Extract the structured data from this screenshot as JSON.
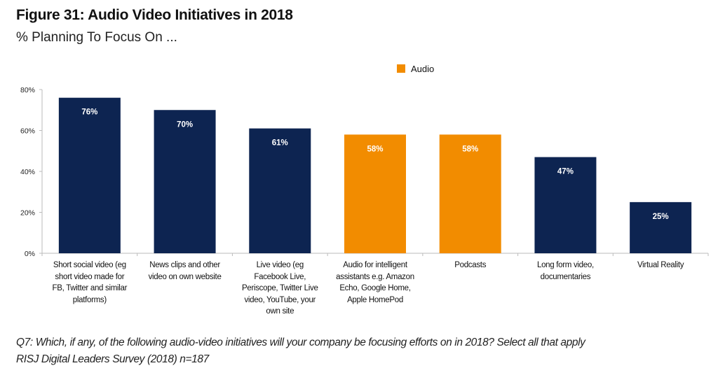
{
  "chart_data": {
    "type": "bar",
    "title": "Figure 31: Audio Video Initiatives in 2018",
    "subtitle": "% Planning To Focus On ...",
    "categories": [
      [
        "Short social video (eg",
        "short video made for",
        "FB, Twitter and similar",
        "platforms)"
      ],
      [
        "News clips and other",
        "video on own website"
      ],
      [
        "Live video (eg",
        "Facebook Live,",
        "Periscope, Twitter Live",
        "video, YouTube, your",
        "own site"
      ],
      [
        "Audio for intelligent",
        "assistants e.g. Amazon",
        "Echo, Google Home,",
        "Apple HomePod"
      ],
      [
        "Podcasts"
      ],
      [
        "Long form video,",
        "documentaries"
      ],
      [
        "Virtual Reality"
      ]
    ],
    "values": [
      76,
      70,
      61,
      58,
      58,
      47,
      25
    ],
    "data_labels": [
      "76%",
      "70%",
      "61%",
      "58%",
      "58%",
      "47%",
      "25%"
    ],
    "is_audio": [
      false,
      false,
      false,
      true,
      true,
      false,
      false
    ],
    "colors": {
      "video": "#0d2451",
      "audio": "#f28c00"
    },
    "legend": {
      "entries": [
        {
          "name": "Audio",
          "color": "#f28c00"
        }
      ],
      "placement": "top-center"
    },
    "ylim": [
      0,
      80
    ],
    "yticks": [
      "0%",
      "20%",
      "40%",
      "60%",
      "80%"
    ],
    "ytick_values": [
      0,
      20,
      40,
      60,
      80
    ],
    "grid": false,
    "xlabel": "",
    "ylabel": ""
  },
  "footnote": {
    "question": "Q7: Which, if any, of the following audio-video initiatives will your company be focusing efforts on in 2018? Select all that apply",
    "source": "RISJ Digital Leaders Survey (2018) n=187"
  }
}
